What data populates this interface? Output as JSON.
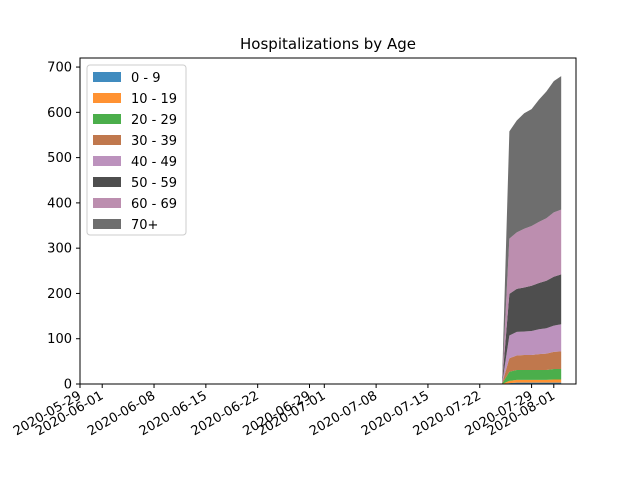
{
  "chart_data": {
    "type": "area",
    "stacked": true,
    "title": "Hospitalizations by Age",
    "xlabel": "",
    "ylabel": "",
    "xlim": [
      "2020-05-29",
      "2020-08-04"
    ],
    "ylim": [
      0,
      720
    ],
    "x_ticks": [
      "2020-05-29",
      "2020-06-01",
      "2020-06-08",
      "2020-06-15",
      "2020-06-22",
      "2020-06-29",
      "2020-07-01",
      "2020-07-08",
      "2020-07-15",
      "2020-07-22",
      "2020-07-29",
      "2020-08-01"
    ],
    "y_ticks": [
      0,
      100,
      200,
      300,
      400,
      500,
      600,
      700
    ],
    "grid": false,
    "legend_position": "upper-left",
    "x": [
      "2020-07-25",
      "2020-07-26",
      "2020-07-27",
      "2020-07-28",
      "2020-07-29",
      "2020-07-30",
      "2020-07-31",
      "2020-08-01",
      "2020-08-02"
    ],
    "series": [
      {
        "name": "0 - 9",
        "color": "#1f77b4",
        "values": [
          0,
          2,
          3,
          3,
          3,
          3,
          3,
          3,
          3
        ]
      },
      {
        "name": "10 - 19",
        "color": "#ff7f0e",
        "values": [
          0,
          5,
          6,
          6,
          6,
          6,
          6,
          7,
          7
        ]
      },
      {
        "name": "20 - 29",
        "color": "#2ca02c",
        "values": [
          0,
          20,
          22,
          22,
          22,
          22,
          22,
          23,
          23
        ]
      },
      {
        "name": "30 - 39",
        "color": "#b5602e",
        "values": [
          0,
          30,
          32,
          33,
          33,
          35,
          36,
          38,
          39
        ]
      },
      {
        "name": "40 - 49",
        "color": "#b07fb1",
        "values": [
          0,
          50,
          52,
          52,
          53,
          55,
          56,
          58,
          60
        ]
      },
      {
        "name": "50 - 59",
        "color": "#2f2f2f",
        "values": [
          0,
          92,
          95,
          97,
          100,
          102,
          105,
          108,
          110
        ]
      },
      {
        "name": "60 - 69",
        "color": "#b07aa1",
        "values": [
          0,
          122,
          125,
          130,
          132,
          135,
          138,
          142,
          143
        ]
      },
      {
        "name": "70+",
        "color": "#555555",
        "values": [
          0,
          237,
          247,
          255,
          258,
          270,
          280,
          290,
          295
        ]
      }
    ]
  }
}
